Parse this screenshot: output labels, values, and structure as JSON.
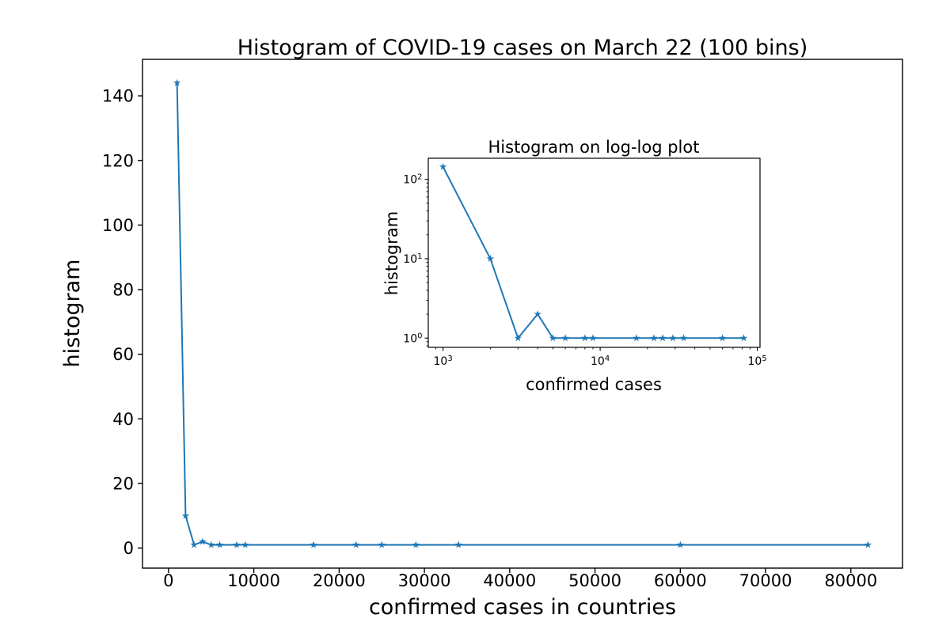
{
  "page": {
    "background": "#ffffff"
  },
  "colors": {
    "line": "#1f77b4",
    "axis": "#000000",
    "text": "#000000"
  },
  "chart_data": [
    {
      "id": "main",
      "type": "line",
      "title": "Histogram of COVID-19 cases on March 22 (100 bins)",
      "xlabel": "confirmed cases in countries",
      "ylabel": "histogram",
      "xscale": "linear",
      "yscale": "linear",
      "marker": "star",
      "line_color": "#1f77b4",
      "x": [
        1000,
        2000,
        3000,
        4000,
        5000,
        6000,
        8000,
        9000,
        17000,
        22000,
        25000,
        29000,
        34000,
        60000,
        82000
      ],
      "y": [
        144,
        10,
        1,
        2,
        1,
        1,
        1,
        1,
        1,
        1,
        1,
        1,
        1,
        1,
        1
      ],
      "xlim": [
        -3050,
        86050
      ],
      "ylim": [
        -6.2,
        151.3
      ],
      "xticks": [
        0,
        10000,
        20000,
        30000,
        40000,
        50000,
        60000,
        70000,
        80000
      ],
      "xtick_labels": [
        "0",
        "10000",
        "20000",
        "30000",
        "40000",
        "50000",
        "60000",
        "70000",
        "80000"
      ],
      "yticks": [
        0,
        20,
        40,
        60,
        80,
        100,
        120,
        140
      ],
      "ytick_labels": [
        "0",
        "20",
        "40",
        "60",
        "80",
        "100",
        "120",
        "140"
      ],
      "grid": false,
      "legend_position": "none"
    },
    {
      "id": "inset",
      "type": "line",
      "title": "Histogram on log-log plot",
      "xlabel": "confirmed cases",
      "ylabel": "histogram",
      "xscale": "log",
      "yscale": "log",
      "marker": "star",
      "line_color": "#1f77b4",
      "x": [
        1000,
        2000,
        3000,
        4000,
        5000,
        6000,
        8000,
        9000,
        17000,
        22000,
        25000,
        29000,
        34000,
        60000,
        82000
      ],
      "y": [
        144,
        10,
        1,
        2,
        1,
        1,
        1,
        1,
        1,
        1,
        1,
        1,
        1,
        1,
        1
      ],
      "xlim": [
        806,
        104000
      ],
      "ylim": [
        0.764,
        184.5
      ],
      "xticks": [
        1000,
        10000,
        100000
      ],
      "xtick_labels": [
        "10^3",
        "10^4",
        "10^5"
      ],
      "yticks": [
        1,
        10,
        100
      ],
      "ytick_labels": [
        "10^0",
        "10^1",
        "10^2"
      ],
      "grid": false,
      "legend_position": "none"
    }
  ]
}
